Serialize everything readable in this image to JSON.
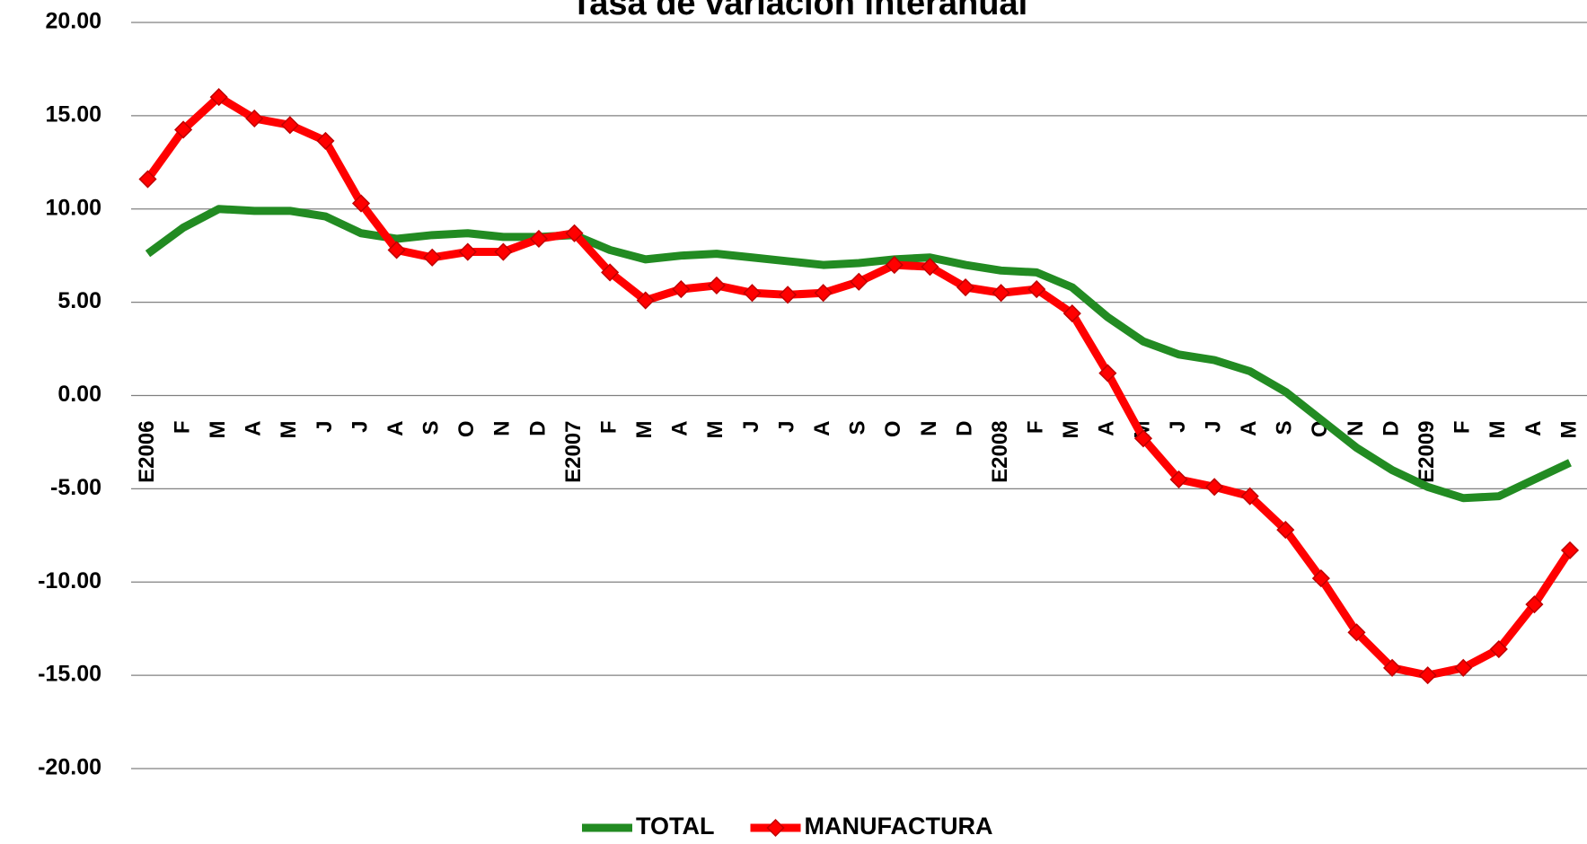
{
  "chart_data": {
    "type": "line",
    "title": "Tasa de variación interanual",
    "categories": [
      "E2006",
      "F",
      "M",
      "A",
      "M",
      "J",
      "J",
      "A",
      "S",
      "O",
      "N",
      "D",
      "E2007",
      "F",
      "M",
      "A",
      "M",
      "J",
      "J",
      "A",
      "S",
      "O",
      "N",
      "D",
      "E2008",
      "F",
      "M",
      "A",
      "M",
      "J",
      "J",
      "A",
      "S",
      "O",
      "N",
      "D",
      "E2009",
      "F",
      "M",
      "A",
      "M"
    ],
    "series": [
      {
        "name": "TOTAL",
        "color": "#228b22",
        "marker": false,
        "values": [
          7.6,
          9.0,
          10.0,
          9.9,
          9.9,
          9.6,
          8.7,
          8.4,
          8.6,
          8.7,
          8.5,
          8.5,
          8.6,
          7.8,
          7.3,
          7.5,
          7.6,
          7.4,
          7.2,
          7.0,
          7.1,
          7.3,
          7.4,
          7.0,
          6.7,
          6.6,
          5.8,
          4.2,
          2.9,
          2.2,
          1.9,
          1.3,
          0.2,
          -1.3,
          -2.8,
          -4.0,
          -4.9,
          -5.5,
          -5.4,
          -4.5,
          -3.6
        ]
      },
      {
        "name": "MANUFACTURA",
        "color": "#ff0000",
        "marker": true,
        "values": [
          11.6,
          14.25,
          16.0,
          14.85,
          14.5,
          13.65,
          10.3,
          7.8,
          7.4,
          7.7,
          7.7,
          8.4,
          8.7,
          6.6,
          5.1,
          5.7,
          5.9,
          5.5,
          5.4,
          5.5,
          6.1,
          7.0,
          6.9,
          5.8,
          5.5,
          5.7,
          4.4,
          1.2,
          -2.3,
          -4.5,
          -4.9,
          -5.4,
          -7.2,
          -9.8,
          -12.7,
          -14.6,
          -15.0,
          -14.6,
          -13.6,
          -11.2,
          -8.3
        ]
      }
    ],
    "ylim": [
      -20,
      20
    ],
    "yticks": [
      {
        "value": -20,
        "label": "-20.00"
      },
      {
        "value": -15,
        "label": "-15.00"
      },
      {
        "value": -10,
        "label": "-10.00"
      },
      {
        "value": -5,
        "label": "-5.00"
      },
      {
        "value": 0,
        "label": "0.00"
      },
      {
        "value": 5,
        "label": "5.00"
      },
      {
        "value": 10,
        "label": "10.00"
      },
      {
        "value": 15,
        "label": "15.00"
      },
      {
        "value": 20,
        "label": "20.00"
      }
    ],
    "grid": true,
    "legend": "bottom"
  }
}
